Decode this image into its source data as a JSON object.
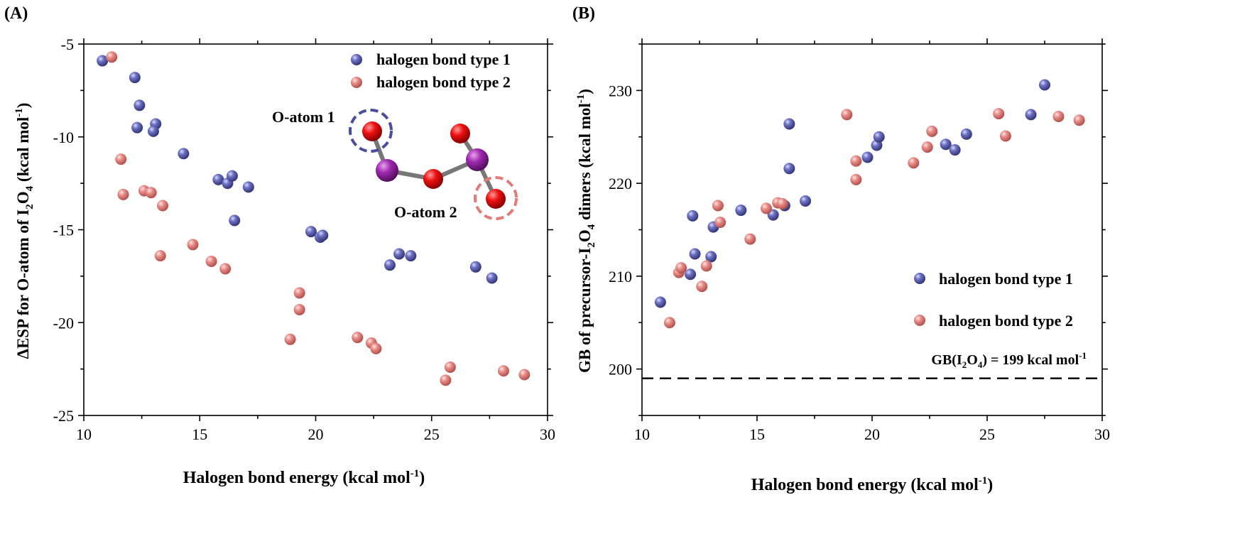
{
  "chart_data": [
    {
      "panel": "(A)",
      "type": "scatter",
      "xlabel": "Halogen bond energy (kcal mol",
      "xlabel_sup": "-1",
      "xlabel_end": ")",
      "ylabel": "ΔESP for O-atom of I",
      "ylabel_sub1": "2",
      "ylabel_mid": "O",
      "ylabel_sub2": "4",
      "ylabel_unit": " (kcal mol",
      "ylabel_sup": "-1",
      "ylabel_end": ")",
      "xlim": [
        10,
        30
      ],
      "ylim": [
        -25,
        -5
      ],
      "xticks": [
        10,
        15,
        20,
        25,
        30
      ],
      "yticks": [
        -25,
        -20,
        -15,
        -10,
        -5
      ],
      "legend_position": "top-right",
      "series": [
        {
          "name": "halogen bond type 1",
          "color": "#4a4d9c",
          "points": [
            [
              10.8,
              -5.9
            ],
            [
              12.2,
              -6.8
            ],
            [
              12.4,
              -8.3
            ],
            [
              12.3,
              -9.5
            ],
            [
              13.1,
              -9.3
            ],
            [
              13.0,
              -9.7
            ],
            [
              14.3,
              -10.9
            ],
            [
              15.8,
              -12.3
            ],
            [
              16.2,
              -12.5
            ],
            [
              16.4,
              -12.1
            ],
            [
              17.1,
              -12.7
            ],
            [
              16.5,
              -14.5
            ],
            [
              19.8,
              -15.1
            ],
            [
              20.2,
              -15.4
            ],
            [
              20.3,
              -15.3
            ],
            [
              23.2,
              -16.9
            ],
            [
              23.6,
              -16.3
            ],
            [
              24.1,
              -16.4
            ],
            [
              26.9,
              -17.0
            ],
            [
              27.6,
              -17.6
            ]
          ]
        },
        {
          "name": "halogen bond type 2",
          "color": "#e07b78",
          "points": [
            [
              11.2,
              -5.7
            ],
            [
              11.6,
              -11.2
            ],
            [
              11.7,
              -13.1
            ],
            [
              12.6,
              -12.9
            ],
            [
              12.9,
              -13.0
            ],
            [
              13.4,
              -13.7
            ],
            [
              13.3,
              -16.4
            ],
            [
              14.7,
              -15.8
            ],
            [
              15.5,
              -16.7
            ],
            [
              16.1,
              -17.1
            ],
            [
              18.9,
              -20.9
            ],
            [
              19.3,
              -18.4
            ],
            [
              19.3,
              -19.3
            ],
            [
              21.8,
              -20.8
            ],
            [
              22.4,
              -21.1
            ],
            [
              22.6,
              -21.4
            ],
            [
              25.6,
              -23.1
            ],
            [
              25.8,
              -22.4
            ],
            [
              28.1,
              -22.6
            ],
            [
              29.0,
              -22.8
            ]
          ]
        }
      ],
      "annotations": [
        "O-atom 1",
        "O-atom 2"
      ]
    },
    {
      "panel": "(B)",
      "type": "scatter",
      "xlabel": "Halogen bond energy (kcal mol",
      "xlabel_sup": "-1",
      "xlabel_end": ")",
      "ylabel": "GB of precursor-I",
      "ylabel_sub1": "2",
      "ylabel_mid": "O",
      "ylabel_sub2": "4",
      "ylabel_unit": " dimers (kcal mol",
      "ylabel_sup": "-1",
      "ylabel_end": ")",
      "xlim": [
        10,
        30
      ],
      "ylim": [
        195,
        235
      ],
      "xticks": [
        10,
        15,
        20,
        25,
        30
      ],
      "yticks": [
        200,
        210,
        220,
        230
      ],
      "legend_position": "bottom-right",
      "reference_line": {
        "y": 199,
        "label_pre": "GB(I",
        "sub1": "2",
        "mid": "O",
        "sub2": "4",
        "label_post": ") = 199 kcal mol",
        "sup": "-1"
      },
      "series": [
        {
          "name": "halogen bond type 1",
          "color": "#4a4d9c",
          "points": [
            [
              10.8,
              207.2
            ],
            [
              12.1,
              210.2
            ],
            [
              12.2,
              216.5
            ],
            [
              12.3,
              212.4
            ],
            [
              13.0,
              212.1
            ],
            [
              13.1,
              215.3
            ],
            [
              14.3,
              217.1
            ],
            [
              15.7,
              216.6
            ],
            [
              16.2,
              217.6
            ],
            [
              16.4,
              221.6
            ],
            [
              16.4,
              226.4
            ],
            [
              17.1,
              218.1
            ],
            [
              19.8,
              222.8
            ],
            [
              20.2,
              224.1
            ],
            [
              20.3,
              225.0
            ],
            [
              23.2,
              224.2
            ],
            [
              23.6,
              223.6
            ],
            [
              24.1,
              225.3
            ],
            [
              26.9,
              227.4
            ],
            [
              27.5,
              230.6
            ]
          ]
        },
        {
          "name": "halogen bond type 2",
          "color": "#e07b78",
          "points": [
            [
              11.2,
              205.0
            ],
            [
              11.6,
              210.4
            ],
            [
              11.7,
              210.9
            ],
            [
              12.6,
              208.9
            ],
            [
              12.8,
              211.1
            ],
            [
              13.3,
              217.6
            ],
            [
              13.4,
              215.8
            ],
            [
              14.7,
              214.0
            ],
            [
              15.4,
              217.3
            ],
            [
              15.9,
              217.9
            ],
            [
              16.1,
              217.8
            ],
            [
              18.9,
              227.4
            ],
            [
              19.3,
              222.4
            ],
            [
              19.3,
              220.4
            ],
            [
              21.8,
              222.2
            ],
            [
              22.4,
              223.9
            ],
            [
              22.6,
              225.6
            ],
            [
              25.5,
              227.5
            ],
            [
              25.8,
              225.1
            ],
            [
              28.1,
              227.2
            ],
            [
              29.0,
              226.8
            ]
          ]
        }
      ]
    }
  ]
}
